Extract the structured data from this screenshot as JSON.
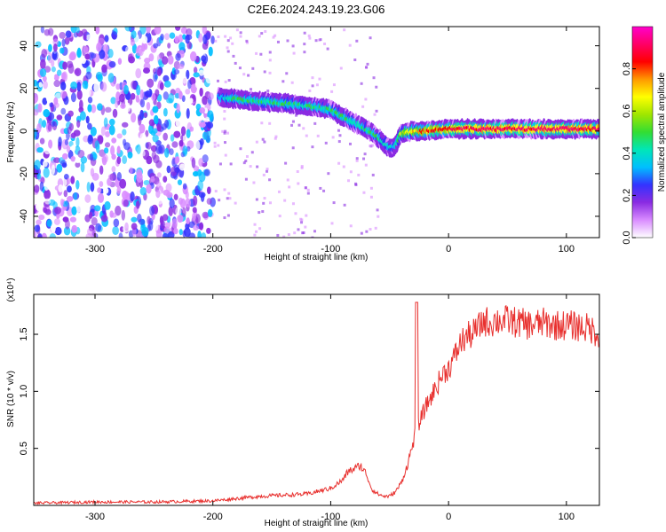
{
  "title": "C2E6.2024.243.19.23.G06",
  "chart_data": [
    {
      "type": "heatmap",
      "xlabel": "Height of straight line (km)",
      "ylabel": "Frequency (Hz)",
      "xlim": [
        -352,
        128
      ],
      "ylim": [
        -50,
        49
      ],
      "xticks": [
        -300,
        -200,
        -100,
        0,
        100
      ],
      "yticks": [
        -40,
        -20,
        0,
        20,
        40
      ],
      "colorbar": {
        "label": "Normalized spectral amplitude",
        "range": [
          0,
          1
        ],
        "ticks": [
          "0.0",
          "0.2",
          "0.4",
          "0.6",
          "0.8"
        ],
        "colors": [
          "#ffffff",
          "#d98cff",
          "#8a2be2",
          "#3333ff",
          "#00bfff",
          "#00e6b8",
          "#33dd33",
          "#a0e600",
          "#ffff00",
          "#ff9900",
          "#ff0000",
          "#ff0066",
          "#ff00cc"
        ]
      },
      "ridge": {
        "x": [
          -195,
          -180,
          -160,
          -140,
          -120,
          -100,
          -90,
          -80,
          -70,
          -60,
          -50,
          -45,
          -40,
          -30,
          -20,
          0,
          20,
          40,
          60,
          80,
          100,
          128
        ],
        "y": [
          16,
          15,
          14,
          13,
          12,
          10,
          7,
          4,
          1,
          -3,
          -8,
          -7,
          -1,
          0,
          0,
          1,
          1,
          1,
          1,
          1,
          1,
          1
        ],
        "peak_amplitude": [
          0.35,
          0.45,
          0.45,
          0.45,
          0.45,
          0.45,
          0.5,
          0.45,
          0.45,
          0.45,
          0.35,
          0.4,
          0.6,
          0.7,
          0.8,
          0.85,
          0.9,
          0.9,
          0.9,
          0.9,
          0.9,
          0.9
        ]
      },
      "noise_region": {
        "x": [
          -352,
          -200
        ],
        "amplitude": 0.2
      }
    },
    {
      "type": "line",
      "xlabel": "Height of straight line (km)",
      "ylabel": "SNR (10 * v/v)",
      "yscale_note": "(x10⁴)",
      "xlim": [
        -352,
        128
      ],
      "ylim": [
        0,
        1.85
      ],
      "xticks": [
        -300,
        -200,
        -100,
        0,
        100
      ],
      "yticks": [
        "0.5",
        "1.0",
        "1.5"
      ],
      "line_color": "#e8302e",
      "series": [
        {
          "x": [
            -352,
            -300,
            -250,
            -200,
            -180,
            -160,
            -140,
            -120,
            -100,
            -90,
            -85,
            -80,
            -75,
            -70,
            -65,
            -60,
            -55,
            -50,
            -45,
            -40,
            -35,
            -30,
            -27,
            -25,
            -22,
            -20,
            -15,
            -10,
            -5,
            0,
            5,
            10,
            15,
            20,
            25,
            30,
            35,
            40,
            50,
            60,
            70,
            80,
            90,
            100,
            110,
            120,
            128
          ],
          "y": [
            0.02,
            0.03,
            0.03,
            0.04,
            0.06,
            0.08,
            0.09,
            0.1,
            0.15,
            0.22,
            0.3,
            0.32,
            0.35,
            0.28,
            0.14,
            0.1,
            0.08,
            0.08,
            0.12,
            0.2,
            0.35,
            0.55,
            0.7,
            0.72,
            0.8,
            0.85,
            0.95,
            1.05,
            1.15,
            1.2,
            1.3,
            1.42,
            1.48,
            1.5,
            1.55,
            1.62,
            1.6,
            1.62,
            1.62,
            1.6,
            1.58,
            1.6,
            1.58,
            1.58,
            1.57,
            1.55,
            1.5
          ]
        }
      ]
    }
  ]
}
